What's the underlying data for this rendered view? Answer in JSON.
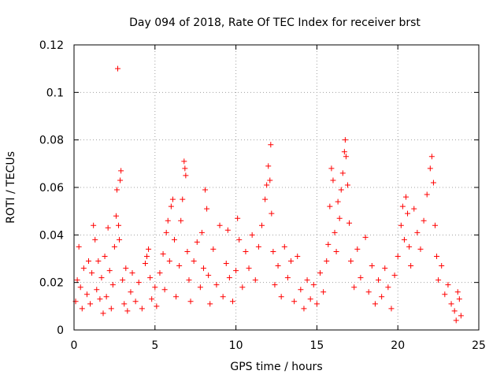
{
  "chart_data": {
    "type": "scatter",
    "title": "Day 094 of 2018, Rate Of TEC Index for receiver brst",
    "xlabel": "GPS time / hours",
    "ylabel": "ROTI / TECUs",
    "xlim": [
      0,
      25
    ],
    "ylim": [
      0,
      0.12
    ],
    "xticks": [
      0,
      5,
      10,
      15,
      20,
      25
    ],
    "yticks": [
      0,
      0.02,
      0.04,
      0.06,
      0.08,
      0.1,
      0.12
    ],
    "xtick_labels": [
      "0",
      "5",
      "10",
      "15",
      "20",
      "25"
    ],
    "ytick_labels": [
      "0",
      "0.02",
      "0.04",
      "0.06",
      "0.08",
      "0.1",
      "0.12"
    ],
    "grid": true,
    "marker": "+",
    "color": "#ff0000",
    "series": [
      {
        "name": "ROTI",
        "points": [
          [
            0.1,
            0.012
          ],
          [
            0.2,
            0.021
          ],
          [
            0.3,
            0.035
          ],
          [
            0.4,
            0.018
          ],
          [
            0.5,
            0.009
          ],
          [
            0.6,
            0.026
          ],
          [
            0.8,
            0.015
          ],
          [
            0.9,
            0.029
          ],
          [
            1.0,
            0.011
          ],
          [
            1.1,
            0.024
          ],
          [
            1.2,
            0.044
          ],
          [
            1.3,
            0.038
          ],
          [
            1.4,
            0.017
          ],
          [
            1.5,
            0.029
          ],
          [
            1.6,
            0.013
          ],
          [
            1.7,
            0.022
          ],
          [
            1.8,
            0.007
          ],
          [
            1.9,
            0.031
          ],
          [
            2.0,
            0.014
          ],
          [
            2.1,
            0.043
          ],
          [
            2.2,
            0.025
          ],
          [
            2.3,
            0.009
          ],
          [
            2.4,
            0.019
          ],
          [
            2.5,
            0.035
          ],
          [
            2.6,
            0.048
          ],
          [
            2.65,
            0.059
          ],
          [
            2.7,
            0.11
          ],
          [
            2.75,
            0.044
          ],
          [
            2.8,
            0.038
          ],
          [
            2.85,
            0.063
          ],
          [
            2.9,
            0.067
          ],
          [
            3.0,
            0.021
          ],
          [
            3.1,
            0.011
          ],
          [
            3.2,
            0.026
          ],
          [
            3.3,
            0.008
          ],
          [
            3.5,
            0.016
          ],
          [
            3.6,
            0.024
          ],
          [
            3.8,
            0.012
          ],
          [
            4.0,
            0.02
          ],
          [
            4.2,
            0.009
          ],
          [
            4.4,
            0.028
          ],
          [
            4.5,
            0.031
          ],
          [
            4.6,
            0.034
          ],
          [
            4.7,
            0.022
          ],
          [
            4.8,
            0.013
          ],
          [
            5.0,
            0.018
          ],
          [
            5.1,
            0.01
          ],
          [
            5.3,
            0.024
          ],
          [
            5.5,
            0.032
          ],
          [
            5.6,
            0.017
          ],
          [
            5.7,
            0.041
          ],
          [
            5.8,
            0.046
          ],
          [
            5.9,
            0.029
          ],
          [
            6.0,
            0.052
          ],
          [
            6.1,
            0.055
          ],
          [
            6.2,
            0.038
          ],
          [
            6.3,
            0.014
          ],
          [
            6.5,
            0.027
          ],
          [
            6.6,
            0.046
          ],
          [
            6.7,
            0.055
          ],
          [
            6.8,
            0.071
          ],
          [
            6.85,
            0.068
          ],
          [
            6.9,
            0.065
          ],
          [
            7.0,
            0.033
          ],
          [
            7.1,
            0.021
          ],
          [
            7.2,
            0.012
          ],
          [
            7.4,
            0.029
          ],
          [
            7.6,
            0.037
          ],
          [
            7.8,
            0.018
          ],
          [
            7.9,
            0.041
          ],
          [
            8.0,
            0.026
          ],
          [
            8.1,
            0.059
          ],
          [
            8.2,
            0.051
          ],
          [
            8.3,
            0.023
          ],
          [
            8.4,
            0.011
          ],
          [
            8.6,
            0.034
          ],
          [
            8.8,
            0.019
          ],
          [
            9.0,
            0.044
          ],
          [
            9.2,
            0.014
          ],
          [
            9.4,
            0.028
          ],
          [
            9.5,
            0.042
          ],
          [
            9.6,
            0.022
          ],
          [
            9.8,
            0.012
          ],
          [
            10.0,
            0.025
          ],
          [
            10.1,
            0.047
          ],
          [
            10.2,
            0.038
          ],
          [
            10.4,
            0.018
          ],
          [
            10.6,
            0.033
          ],
          [
            10.8,
            0.026
          ],
          [
            11.0,
            0.04
          ],
          [
            11.2,
            0.021
          ],
          [
            11.4,
            0.035
          ],
          [
            11.6,
            0.044
          ],
          [
            11.8,
            0.055
          ],
          [
            11.9,
            0.061
          ],
          [
            12.0,
            0.069
          ],
          [
            12.1,
            0.063
          ],
          [
            12.15,
            0.078
          ],
          [
            12.2,
            0.049
          ],
          [
            12.3,
            0.033
          ],
          [
            12.4,
            0.019
          ],
          [
            12.6,
            0.027
          ],
          [
            12.8,
            0.014
          ],
          [
            13.0,
            0.035
          ],
          [
            13.2,
            0.022
          ],
          [
            13.4,
            0.029
          ],
          [
            13.6,
            0.012
          ],
          [
            13.8,
            0.031
          ],
          [
            14.0,
            0.017
          ],
          [
            14.2,
            0.009
          ],
          [
            14.4,
            0.021
          ],
          [
            14.6,
            0.013
          ],
          [
            14.8,
            0.019
          ],
          [
            15.0,
            0.011
          ],
          [
            15.2,
            0.024
          ],
          [
            15.4,
            0.016
          ],
          [
            15.6,
            0.029
          ],
          [
            15.7,
            0.036
          ],
          [
            15.8,
            0.052
          ],
          [
            15.9,
            0.068
          ],
          [
            16.0,
            0.063
          ],
          [
            16.1,
            0.041
          ],
          [
            16.2,
            0.033
          ],
          [
            16.3,
            0.054
          ],
          [
            16.4,
            0.047
          ],
          [
            16.5,
            0.059
          ],
          [
            16.6,
            0.066
          ],
          [
            16.7,
            0.075
          ],
          [
            16.75,
            0.08
          ],
          [
            16.8,
            0.073
          ],
          [
            16.9,
            0.061
          ],
          [
            17.0,
            0.045
          ],
          [
            17.1,
            0.029
          ],
          [
            17.3,
            0.018
          ],
          [
            17.5,
            0.034
          ],
          [
            17.7,
            0.022
          ],
          [
            18.0,
            0.039
          ],
          [
            18.2,
            0.016
          ],
          [
            18.4,
            0.027
          ],
          [
            18.6,
            0.011
          ],
          [
            18.8,
            0.021
          ],
          [
            19.0,
            0.014
          ],
          [
            19.2,
            0.026
          ],
          [
            19.4,
            0.018
          ],
          [
            19.6,
            0.009
          ],
          [
            19.8,
            0.023
          ],
          [
            20.0,
            0.031
          ],
          [
            20.2,
            0.044
          ],
          [
            20.3,
            0.052
          ],
          [
            20.4,
            0.038
          ],
          [
            20.5,
            0.056
          ],
          [
            20.6,
            0.049
          ],
          [
            20.7,
            0.035
          ],
          [
            20.8,
            0.027
          ],
          [
            21.0,
            0.051
          ],
          [
            21.2,
            0.041
          ],
          [
            21.4,
            0.034
          ],
          [
            21.6,
            0.046
          ],
          [
            21.8,
            0.057
          ],
          [
            22.0,
            0.068
          ],
          [
            22.1,
            0.073
          ],
          [
            22.2,
            0.062
          ],
          [
            22.3,
            0.044
          ],
          [
            22.4,
            0.031
          ],
          [
            22.5,
            0.021
          ],
          [
            22.7,
            0.027
          ],
          [
            22.9,
            0.015
          ],
          [
            23.1,
            0.019
          ],
          [
            23.3,
            0.011
          ],
          [
            23.5,
            0.008
          ],
          [
            23.6,
            0.004
          ],
          [
            23.7,
            0.016
          ],
          [
            23.8,
            0.013
          ],
          [
            23.9,
            0.006
          ]
        ]
      }
    ]
  }
}
